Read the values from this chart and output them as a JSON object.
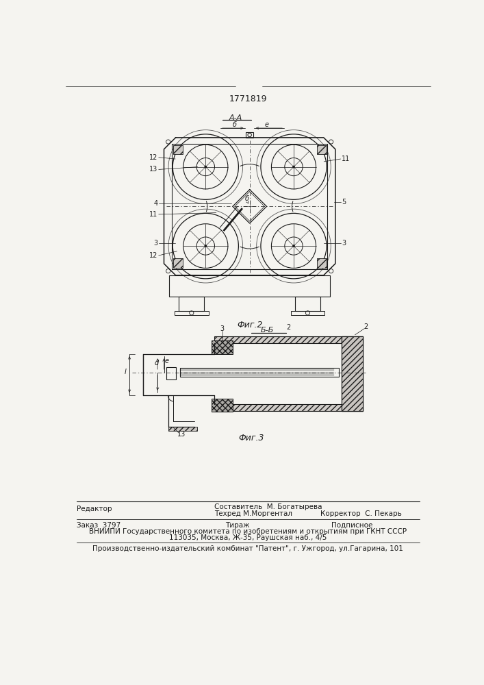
{
  "patent_number": "1771819",
  "bg_color": "#f5f4f0",
  "line_color": "#1a1a1a",
  "fig2_title": "А-А",
  "fig2_caption": "Фиг.2",
  "fig3_title": "Б-Б",
  "fig3_caption": "Фиг.3",
  "footer_col1_r1": "Редактор",
  "footer_col2_r1": "Составитель  М. Богатырева",
  "footer_col2_r2": "Техред М.Моргентал",
  "footer_col3_r2": "Корректор  С. Пекарь",
  "footer_r3_c1": "Заказ  3797",
  "footer_r3_c2": "Тираж",
  "footer_r3_c3": "Подписное",
  "footer_vnipi": "ВНИИПИ Государственного комитета по изобретениям и открытиям при ГКНТ СССР",
  "footer_addr": "113035, Москва, Ж-35, Раушская наб., 4/5",
  "footer_patent": "Производственно-издательский комбинат \"Патент\", г. Ужгород, ул.Гагарина, 101"
}
